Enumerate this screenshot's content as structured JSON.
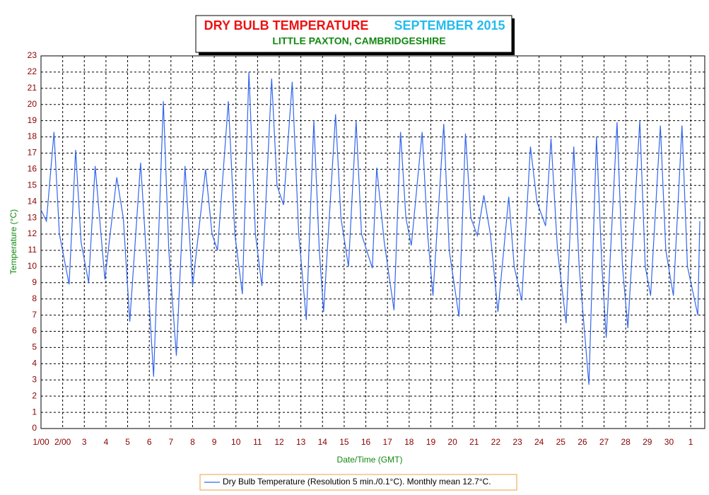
{
  "chart_data": {
    "type": "line",
    "title": "DRY BULB TEMPERATURE",
    "title_period": "SEPTEMBER 2015",
    "subtitle": "LITTLE PAXTON, CAMBRIDGESHIRE",
    "y_label": "Temperature (°C)",
    "x_label": "Date/Time (GMT)",
    "grid": true,
    "xlim": [
      0,
      30.65
    ],
    "ylim": [
      0,
      23
    ],
    "yticks": [
      0,
      1,
      2,
      3,
      4,
      5,
      6,
      7,
      8,
      9,
      10,
      11,
      12,
      13,
      14,
      15,
      16,
      17,
      18,
      19,
      20,
      21,
      22,
      23
    ],
    "xticks": [
      {
        "value": 0,
        "label": "1/00"
      },
      {
        "value": 1,
        "label": "2/00"
      },
      {
        "value": 2,
        "label": "3"
      },
      {
        "value": 3,
        "label": "4"
      },
      {
        "value": 4,
        "label": "5"
      },
      {
        "value": 5,
        "label": "6"
      },
      {
        "value": 6,
        "label": "7"
      },
      {
        "value": 7,
        "label": "8"
      },
      {
        "value": 8,
        "label": "9"
      },
      {
        "value": 9,
        "label": "10"
      },
      {
        "value": 10,
        "label": "11"
      },
      {
        "value": 11,
        "label": "12"
      },
      {
        "value": 12,
        "label": "13"
      },
      {
        "value": 13,
        "label": "14"
      },
      {
        "value": 14,
        "label": "15"
      },
      {
        "value": 15,
        "label": "16"
      },
      {
        "value": 16,
        "label": "17"
      },
      {
        "value": 17,
        "label": "18"
      },
      {
        "value": 18,
        "label": "19"
      },
      {
        "value": 19,
        "label": "20"
      },
      {
        "value": 20,
        "label": "21"
      },
      {
        "value": 21,
        "label": "22"
      },
      {
        "value": 22,
        "label": "23"
      },
      {
        "value": 23,
        "label": "24"
      },
      {
        "value": 24,
        "label": "25"
      },
      {
        "value": 25,
        "label": "26"
      },
      {
        "value": 26,
        "label": "27"
      },
      {
        "value": 27,
        "label": "28"
      },
      {
        "value": 28,
        "label": "29"
      },
      {
        "value": 29,
        "label": "30"
      },
      {
        "value": 30,
        "label": "1"
      }
    ],
    "x": [
      0,
      0.25,
      0.6,
      0.85,
      1.3,
      1.6,
      1.85,
      2.2,
      2.5,
      2.8,
      2.95,
      3.5,
      3.8,
      4.1,
      4.6,
      4.85,
      5.2,
      5.65,
      5.9,
      6.25,
      6.65,
      6.85,
      7.0,
      7.6,
      7.9,
      8.15,
      8.65,
      8.95,
      9.3,
      9.6,
      9.9,
      10.2,
      10.65,
      10.9,
      11.2,
      11.6,
      11.9,
      12.25,
      12.6,
      12.85,
      13.05,
      13.6,
      13.85,
      14.2,
      14.55,
      14.8,
      15.3,
      15.5,
      15.85,
      16.3,
      16.6,
      16.85,
      17.1,
      17.6,
      17.85,
      18.1,
      18.6,
      18.85,
      19.3,
      19.6,
      19.85,
      20.15,
      20.45,
      20.75,
      21.1,
      21.6,
      21.85,
      22.2,
      22.6,
      22.9,
      23.3,
      23.55,
      23.85,
      24.25,
      24.6,
      24.85,
      25.3,
      25.65,
      25.9,
      26.1,
      26.6,
      26.85,
      27.1,
      27.65,
      27.9,
      28.15,
      28.6,
      28.85,
      29.2,
      29.6,
      29.85,
      30.33,
      30.42
    ],
    "series": [
      {
        "name": "Dry Bulb Temperature (Resolution 5 min./0.1°C). Monthly mean 12.7°C.",
        "color": "#3366ee",
        "values": [
          13.5,
          12.8,
          18.3,
          12.0,
          8.9,
          17.2,
          11.5,
          9.0,
          16.2,
          11.5,
          9.2,
          15.5,
          13.0,
          6.6,
          16.4,
          11.0,
          3.2,
          20.2,
          11.0,
          4.5,
          16.2,
          12.0,
          8.8,
          16.0,
          12.0,
          11.0,
          20.2,
          12.0,
          8.3,
          22.0,
          12.0,
          8.8,
          21.6,
          15.0,
          13.8,
          21.4,
          12.0,
          6.7,
          19.0,
          11.0,
          7.2,
          19.4,
          13.0,
          10.0,
          19.0,
          12.0,
          9.9,
          16.1,
          11.5,
          7.3,
          18.3,
          13.0,
          11.3,
          18.3,
          12.0,
          8.2,
          18.8,
          11.0,
          6.9,
          18.2,
          13.0,
          11.9,
          14.4,
          12.0,
          7.2,
          14.3,
          10.0,
          7.9,
          17.4,
          14.0,
          12.5,
          17.9,
          11.0,
          6.5,
          17.4,
          10.0,
          2.7,
          18.0,
          10.0,
          5.6,
          18.9,
          10.0,
          6.2,
          19.0,
          10.0,
          8.2,
          18.7,
          11.0,
          8.2,
          18.7,
          10.0,
          7.0,
          12.8
        ]
      }
    ]
  }
}
